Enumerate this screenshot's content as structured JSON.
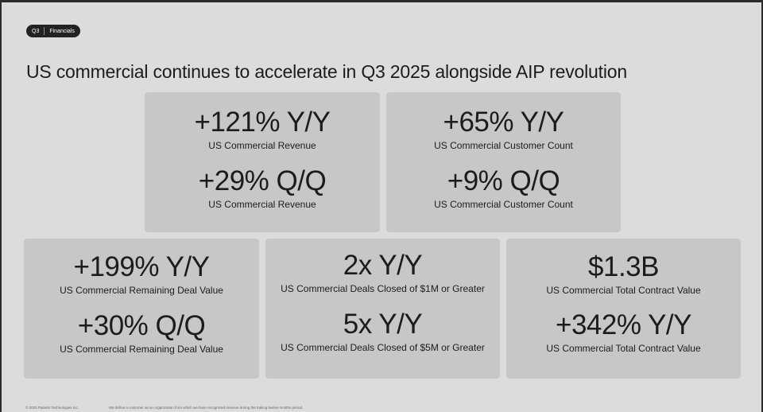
{
  "badge": {
    "quarter": "Q3",
    "section": "Financials"
  },
  "title": "US commercial continues to accelerate in Q3 2025 alongside AIP revolution",
  "cards": [
    {
      "metrics": [
        {
          "value": "+121% Y/Y",
          "label": "US Commercial Revenue"
        },
        {
          "value": "+29% Q/Q",
          "label": "US Commercial Revenue"
        }
      ]
    },
    {
      "metrics": [
        {
          "value": "+65% Y/Y",
          "label": "US Commercial Customer Count"
        },
        {
          "value": "+9% Q/Q",
          "label": "US Commercial Customer Count"
        }
      ]
    },
    {
      "metrics": [
        {
          "value": "+199% Y/Y",
          "label": "US Commercial Remaining Deal Value"
        },
        {
          "value": "+30% Q/Q",
          "label": "US Commercial Remaining Deal Value"
        }
      ]
    },
    {
      "metrics": [
        {
          "value": "2x Y/Y",
          "label": "US Commercial Deals Closed of $1M or Greater"
        },
        {
          "value": "5x Y/Y",
          "label": "US Commercial Deals Closed of $5M or Greater"
        }
      ]
    },
    {
      "metrics": [
        {
          "value": "$1.3B",
          "label": "US Commercial Total Contract Value"
        },
        {
          "value": "+342% Y/Y",
          "label": "US Commercial Total Contract Value"
        }
      ]
    }
  ],
  "footer": {
    "copyright": "© 2025 Palantir Technologies Inc.",
    "note": "We define a customer as an organization from which we have recognized revenue during the trailing twelve months period."
  }
}
